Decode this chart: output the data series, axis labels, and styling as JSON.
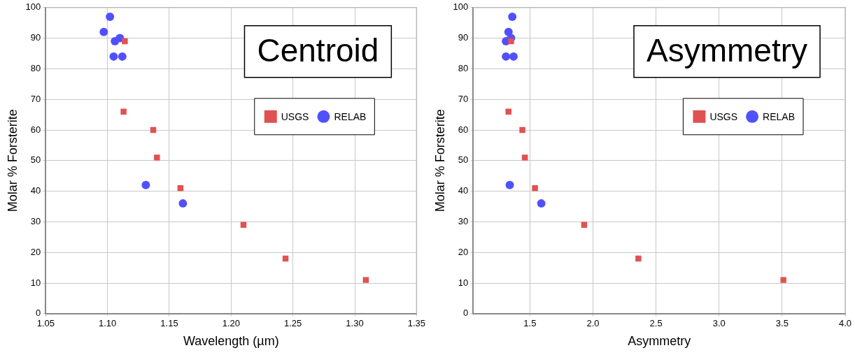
{
  "chart_data": [
    {
      "type": "scatter",
      "title": "Centroid",
      "xlabel": "Wavelength (µm)",
      "ylabel": "Molar % Forsterite",
      "series": [
        {
          "name": "USGS",
          "color": "#e05252",
          "marker": "square",
          "x": [
            1.114,
            1.113,
            1.137,
            1.14,
            1.159,
            1.21,
            1.244,
            1.309
          ],
          "values": [
            89,
            66,
            60,
            51,
            41,
            29,
            18,
            11
          ]
        },
        {
          "name": "RELAB",
          "color": "#5050ff",
          "marker": "circle",
          "x": [
            1.102,
            1.097,
            1.106,
            1.11,
            1.105,
            1.112,
            1.131,
            1.161
          ],
          "values": [
            97,
            92,
            89,
            90,
            84,
            84,
            42,
            36
          ]
        }
      ],
      "xlim": [
        1.05,
        1.35
      ],
      "xticks": [
        {
          "value": 1.05,
          "label": "1.05"
        },
        {
          "value": 1.1,
          "label": "1.10"
        },
        {
          "value": 1.15,
          "label": "1.15"
        },
        {
          "value": 1.2,
          "label": "1.20"
        },
        {
          "value": 1.25,
          "label": "1.25"
        },
        {
          "value": 1.3,
          "label": "1.30"
        },
        {
          "value": 1.35,
          "label": "1.35"
        }
      ],
      "ylim": [
        0,
        100
      ],
      "yticks": [
        0,
        10,
        20,
        30,
        40,
        50,
        60,
        70,
        80,
        90,
        100
      ],
      "grid": true,
      "legend": "top right"
    },
    {
      "type": "scatter",
      "title": "Asymmetry",
      "xlabel": "Asymmetry",
      "ylabel": "Molar % Forsterite",
      "series": [
        {
          "name": "USGS",
          "color": "#e05252",
          "marker": "square",
          "x": [
            1.35,
            1.33,
            1.44,
            1.46,
            1.54,
            1.93,
            2.36,
            3.51
          ],
          "values": [
            89,
            66,
            60,
            51,
            41,
            29,
            18,
            11
          ]
        },
        {
          "name": "RELAB",
          "color": "#5050ff",
          "marker": "circle",
          "x": [
            1.36,
            1.33,
            1.31,
            1.35,
            1.31,
            1.37,
            1.34,
            1.59
          ],
          "values": [
            97,
            92,
            89,
            90,
            84,
            84,
            42,
            36
          ]
        }
      ],
      "xlim": [
        1.05,
        4.0
      ],
      "xticks": [
        {
          "value": 1.5,
          "label": "1.5"
        },
        {
          "value": 2.0,
          "label": "2.0"
        },
        {
          "value": 2.5,
          "label": "2.5"
        },
        {
          "value": 3.0,
          "label": "3.0"
        },
        {
          "value": 3.5,
          "label": "3.5"
        },
        {
          "value": 4.0,
          "label": "4.0"
        }
      ],
      "ylim": [
        0,
        100
      ],
      "yticks": [
        0,
        10,
        20,
        30,
        40,
        50,
        60,
        70,
        80,
        90,
        100
      ],
      "grid": true,
      "legend": "top right"
    }
  ]
}
